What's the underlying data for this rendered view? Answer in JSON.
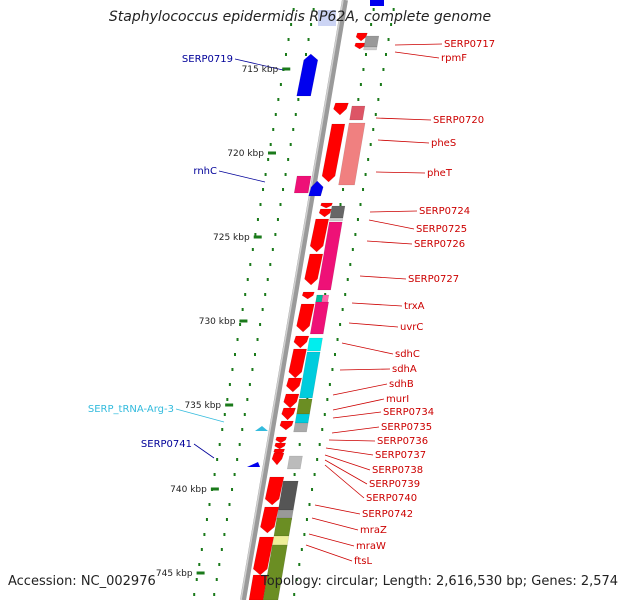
{
  "title": "Staphylococcus epidermidis RP62A, complete genome",
  "footer": {
    "accession": "Accession: NC_002976",
    "topology": "Topology: circular; Length: 2,616,530 bp; Genes: 2,574"
  },
  "colors": {
    "backbone": "#9a9a9a",
    "ticks": "#1a7a1a",
    "cds_red": "#ff0000",
    "blue": "#0000ee",
    "label_red": "#cc0000",
    "label_blue": "#000099",
    "trna": "#33bbdd"
  },
  "scale_labels": [
    "715 kbp",
    "720 kbp",
    "725 kbp",
    "730 kbp",
    "735 kbp",
    "740 kbp",
    "745 kbp"
  ],
  "right_labels": [
    "SERP0717",
    "rpmF",
    "SERP0720",
    "pheS",
    "pheT",
    "SERP0724",
    "SERP0725",
    "SERP0726",
    "SERP0727",
    "trxA",
    "uvrC",
    "sdhC",
    "sdhA",
    "sdhB",
    "murI",
    "SERP0734",
    "SERP0735",
    "SERP0736",
    "SERP0737",
    "SERP0738",
    "SERP0739",
    "SERP0740",
    "SERP0742",
    "mraZ",
    "mraW",
    "ftsL"
  ],
  "left_labels": [
    {
      "text": "SERP0719",
      "color": "blue"
    },
    {
      "text": "rnhC",
      "color": "blue"
    },
    {
      "text": "SERP_tRNA-Arg-3",
      "color": "trna"
    },
    {
      "text": "SERP0741",
      "color": "blue"
    }
  ]
}
